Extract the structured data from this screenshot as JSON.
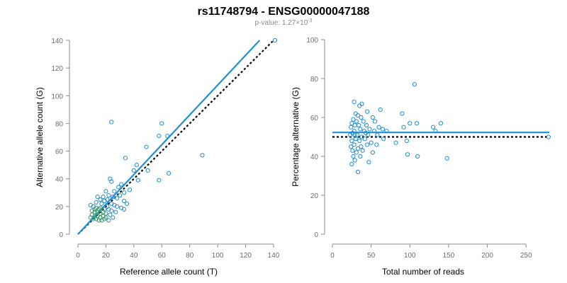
{
  "header": {
    "title": "rs11748794 - ENSG00000047188",
    "subtitle_prefix": "p-value: 1.27×10",
    "subtitle_exp": "-3"
  },
  "colors": {
    "points": "#1f8fd6",
    "points_dense": "#2aa06a",
    "fit_line": "#1f8fd6",
    "reference_line": "#000000",
    "axis": "#8c8c8c"
  },
  "chart_data": [
    {
      "type": "scatter",
      "xlabel": "Reference allele count (T)",
      "ylabel": "Alternative allele count (G)",
      "xlim": [
        0,
        140
      ],
      "ylim": [
        0,
        140
      ],
      "xticks": [
        0,
        20,
        40,
        60,
        80,
        100,
        120,
        140
      ],
      "yticks": [
        0,
        20,
        40,
        60,
        80,
        100,
        120,
        140
      ],
      "grid": false,
      "fit_line": {
        "x": [
          0,
          130
        ],
        "y": [
          0,
          140
        ],
        "style": "solid",
        "color": "#1f8fd6"
      },
      "reference_line": {
        "x": [
          0,
          140
        ],
        "y": [
          0,
          140
        ],
        "style": "dotted",
        "color": "#000000"
      },
      "points": [
        {
          "x": 141,
          "y": 140
        },
        {
          "x": 24,
          "y": 81
        },
        {
          "x": 60,
          "y": 80
        },
        {
          "x": 64,
          "y": 71
        },
        {
          "x": 58,
          "y": 71
        },
        {
          "x": 89,
          "y": 57
        },
        {
          "x": 49,
          "y": 63
        },
        {
          "x": 34,
          "y": 55
        },
        {
          "x": 42,
          "y": 50
        },
        {
          "x": 40,
          "y": 46
        },
        {
          "x": 50,
          "y": 46
        },
        {
          "x": 65,
          "y": 44
        },
        {
          "x": 23,
          "y": 40
        },
        {
          "x": 24,
          "y": 38
        },
        {
          "x": 58,
          "y": 39
        },
        {
          "x": 43,
          "y": 39
        },
        {
          "x": 31,
          "y": 36
        },
        {
          "x": 37,
          "y": 32
        },
        {
          "x": 29,
          "y": 34
        },
        {
          "x": 33,
          "y": 30
        },
        {
          "x": 20,
          "y": 31
        },
        {
          "x": 26,
          "y": 31
        },
        {
          "x": 22,
          "y": 28
        },
        {
          "x": 25,
          "y": 27
        },
        {
          "x": 28,
          "y": 26
        },
        {
          "x": 30,
          "y": 28
        },
        {
          "x": 18,
          "y": 27
        },
        {
          "x": 14,
          "y": 27
        },
        {
          "x": 16,
          "y": 25
        },
        {
          "x": 13,
          "y": 23
        },
        {
          "x": 19,
          "y": 24
        },
        {
          "x": 21,
          "y": 25
        },
        {
          "x": 24,
          "y": 22
        },
        {
          "x": 33,
          "y": 24
        },
        {
          "x": 35,
          "y": 22
        },
        {
          "x": 17,
          "y": 22
        },
        {
          "x": 28,
          "y": 20
        },
        {
          "x": 31,
          "y": 19
        },
        {
          "x": 33,
          "y": 18
        },
        {
          "x": 26,
          "y": 21
        },
        {
          "x": 16,
          "y": 19
        },
        {
          "x": 11,
          "y": 20
        },
        {
          "x": 9,
          "y": 21
        },
        {
          "x": 13,
          "y": 19
        },
        {
          "x": 19,
          "y": 18
        },
        {
          "x": 22,
          "y": 18
        },
        {
          "x": 24,
          "y": 17
        },
        {
          "x": 12,
          "y": 16
        },
        {
          "x": 14,
          "y": 16
        },
        {
          "x": 16,
          "y": 15
        },
        {
          "x": 18,
          "y": 16
        },
        {
          "x": 20,
          "y": 15
        },
        {
          "x": 10,
          "y": 14
        },
        {
          "x": 12,
          "y": 13
        },
        {
          "x": 14,
          "y": 13
        },
        {
          "x": 16,
          "y": 12
        },
        {
          "x": 18,
          "y": 13
        },
        {
          "x": 11,
          "y": 11
        },
        {
          "x": 13,
          "y": 11
        },
        {
          "x": 15,
          "y": 10
        },
        {
          "x": 17,
          "y": 10
        },
        {
          "x": 20,
          "y": 12
        },
        {
          "x": 22,
          "y": 10
        },
        {
          "x": 10,
          "y": 17
        },
        {
          "x": 12,
          "y": 18
        },
        {
          "x": 15,
          "y": 18
        },
        {
          "x": 9,
          "y": 12
        },
        {
          "x": 21,
          "y": 20
        },
        {
          "x": 23,
          "y": 14
        },
        {
          "x": 25,
          "y": 12
        },
        {
          "x": 27,
          "y": 16
        },
        {
          "x": 19,
          "y": 11
        }
      ]
    },
    {
      "type": "scatter",
      "xlabel": "Total number of reads",
      "ylabel": "Percentage alternative (G)",
      "xlim": [
        0,
        280
      ],
      "ylim": [
        0,
        100
      ],
      "xticks": [
        0,
        50,
        100,
        150,
        200,
        250
      ],
      "yticks": [
        0,
        20,
        40,
        60,
        80,
        100
      ],
      "grid": false,
      "fit_line": {
        "y": 52.3,
        "x": [
          0,
          280
        ],
        "style": "solid",
        "color": "#1f8fd6"
      },
      "reference_line": {
        "y": 50,
        "x": [
          0,
          280
        ],
        "style": "dotted",
        "color": "#000000"
      },
      "points": [
        {
          "x": 106,
          "y": 77
        },
        {
          "x": 28,
          "y": 68
        },
        {
          "x": 38,
          "y": 67
        },
        {
          "x": 35,
          "y": 66
        },
        {
          "x": 62,
          "y": 64
        },
        {
          "x": 45,
          "y": 63
        },
        {
          "x": 30,
          "y": 62
        },
        {
          "x": 33,
          "y": 61
        },
        {
          "x": 37,
          "y": 60
        },
        {
          "x": 52,
          "y": 60
        },
        {
          "x": 90,
          "y": 62
        },
        {
          "x": 27,
          "y": 59
        },
        {
          "x": 31,
          "y": 58
        },
        {
          "x": 40,
          "y": 58
        },
        {
          "x": 55,
          "y": 58
        },
        {
          "x": 100,
          "y": 57
        },
        {
          "x": 109,
          "y": 57
        },
        {
          "x": 140,
          "y": 57
        },
        {
          "x": 25,
          "y": 57
        },
        {
          "x": 29,
          "y": 56
        },
        {
          "x": 34,
          "y": 56
        },
        {
          "x": 44,
          "y": 56
        },
        {
          "x": 60,
          "y": 55
        },
        {
          "x": 92,
          "y": 55
        },
        {
          "x": 130,
          "y": 55
        },
        {
          "x": 24,
          "y": 55
        },
        {
          "x": 48,
          "y": 54
        },
        {
          "x": 65,
          "y": 54
        },
        {
          "x": 36,
          "y": 54
        },
        {
          "x": 28,
          "y": 53
        },
        {
          "x": 41,
          "y": 53
        },
        {
          "x": 54,
          "y": 53
        },
        {
          "x": 70,
          "y": 53
        },
        {
          "x": 133,
          "y": 53
        },
        {
          "x": 26,
          "y": 52
        },
        {
          "x": 32,
          "y": 51
        },
        {
          "x": 46,
          "y": 51
        },
        {
          "x": 58,
          "y": 51
        },
        {
          "x": 23,
          "y": 51
        },
        {
          "x": 38,
          "y": 50
        },
        {
          "x": 279,
          "y": 50
        },
        {
          "x": 30,
          "y": 49
        },
        {
          "x": 42,
          "y": 49
        },
        {
          "x": 66,
          "y": 49
        },
        {
          "x": 25,
          "y": 48
        },
        {
          "x": 35,
          "y": 48
        },
        {
          "x": 50,
          "y": 47
        },
        {
          "x": 82,
          "y": 47
        },
        {
          "x": 96,
          "y": 48
        },
        {
          "x": 28,
          "y": 46
        },
        {
          "x": 45,
          "y": 46
        },
        {
          "x": 57,
          "y": 46
        },
        {
          "x": 24,
          "y": 45
        },
        {
          "x": 33,
          "y": 44
        },
        {
          "x": 39,
          "y": 43
        },
        {
          "x": 26,
          "y": 43
        },
        {
          "x": 52,
          "y": 42
        },
        {
          "x": 31,
          "y": 42
        },
        {
          "x": 97,
          "y": 41
        },
        {
          "x": 110,
          "y": 40
        },
        {
          "x": 27,
          "y": 40
        },
        {
          "x": 36,
          "y": 40
        },
        {
          "x": 148,
          "y": 39
        },
        {
          "x": 29,
          "y": 38
        },
        {
          "x": 47,
          "y": 37
        },
        {
          "x": 25,
          "y": 36
        },
        {
          "x": 33,
          "y": 32
        },
        {
          "x": 29,
          "y": 51
        },
        {
          "x": 43,
          "y": 52
        },
        {
          "x": 37,
          "y": 45
        }
      ]
    }
  ]
}
